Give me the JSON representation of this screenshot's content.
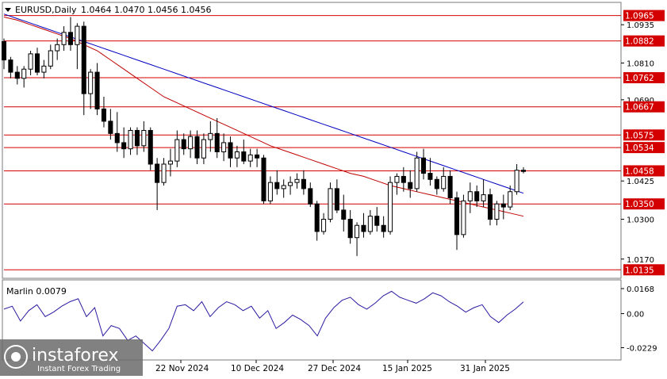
{
  "chart_data": [
    {
      "type": "candlestick",
      "title": "EURUSD,Daily",
      "ohlc_label": "1.0464 1.0470 1.0456 1.0456",
      "ylim": [
        1.0115,
        1.0995
      ],
      "y_ticks": [
        "1.0935",
        "1.0810",
        "1.0690",
        "1.0425",
        "1.0300",
        "1.0170"
      ],
      "levels": [
        {
          "label": "1.0965",
          "value": 1.0965
        },
        {
          "label": "1.0882",
          "value": 1.0882
        },
        {
          "label": "1.0762",
          "value": 1.0762
        },
        {
          "label": "1.0667",
          "value": 1.0667
        },
        {
          "label": "1.0575",
          "value": 1.0575
        },
        {
          "label": "1.0534",
          "value": 1.0534
        },
        {
          "label": "1.0458",
          "value": 1.0458
        },
        {
          "label": "1.0350",
          "value": 1.035
        },
        {
          "label": "1.0135",
          "value": 1.0135
        }
      ],
      "x_labels": [
        "22 Nov 2024",
        "10 Dec 2024",
        "27 Dec 2024",
        "15 Jan 2025",
        "31 Jan 2025"
      ],
      "candles": [
        [
          1.088,
          1.089,
          1.079,
          1.082
        ],
        [
          1.082,
          1.083,
          1.076,
          1.078
        ],
        [
          1.078,
          1.08,
          1.074,
          1.076
        ],
        [
          1.076,
          1.08,
          1.073,
          1.079
        ],
        [
          1.079,
          1.085,
          1.077,
          1.084
        ],
        [
          1.084,
          1.086,
          1.077,
          1.078
        ],
        [
          1.078,
          1.082,
          1.076,
          1.08
        ],
        [
          1.08,
          1.087,
          1.079,
          1.085
        ],
        [
          1.085,
          1.089,
          1.082,
          1.087
        ],
        [
          1.087,
          1.093,
          1.085,
          1.091
        ],
        [
          1.091,
          1.096,
          1.085,
          1.087
        ],
        [
          1.087,
          1.094,
          1.079,
          1.093
        ],
        [
          1.093,
          1.0945,
          1.064,
          1.071
        ],
        [
          1.071,
          1.079,
          1.066,
          1.078
        ],
        [
          1.078,
          1.081,
          1.064,
          1.066
        ],
        [
          1.066,
          1.07,
          1.06,
          1.062
        ],
        [
          1.062,
          1.066,
          1.056,
          1.058
        ],
        [
          1.058,
          1.065,
          1.052,
          1.055
        ],
        [
          1.055,
          1.06,
          1.05,
          1.053
        ],
        [
          1.053,
          1.06,
          1.051,
          1.059
        ],
        [
          1.059,
          1.06,
          1.051,
          1.054
        ],
        [
          1.054,
          1.062,
          1.052,
          1.059
        ],
        [
          1.059,
          1.06,
          1.046,
          1.048
        ],
        [
          1.048,
          1.05,
          1.033,
          1.042
        ],
        [
          1.042,
          1.05,
          1.041,
          1.048
        ],
        [
          1.048,
          1.053,
          1.044,
          1.049
        ],
        [
          1.049,
          1.059,
          1.047,
          1.056
        ],
        [
          1.056,
          1.058,
          1.051,
          1.053
        ],
        [
          1.053,
          1.059,
          1.05,
          1.057
        ],
        [
          1.057,
          1.059,
          1.048,
          1.05
        ],
        [
          1.05,
          1.058,
          1.048,
          1.056
        ],
        [
          1.056,
          1.062,
          1.052,
          1.058
        ],
        [
          1.058,
          1.063,
          1.05,
          1.052
        ],
        [
          1.052,
          1.058,
          1.049,
          1.055
        ],
        [
          1.055,
          1.057,
          1.047,
          1.05
        ],
        [
          1.05,
          1.054,
          1.047,
          1.052
        ],
        [
          1.052,
          1.056,
          1.048,
          1.049
        ],
        [
          1.049,
          1.053,
          1.047,
          1.051
        ],
        [
          1.051,
          1.053,
          1.047,
          1.05
        ],
        [
          1.05,
          1.051,
          1.035,
          1.036
        ],
        [
          1.036,
          1.044,
          1.035,
          1.042
        ],
        [
          1.042,
          1.046,
          1.038,
          1.04
        ],
        [
          1.04,
          1.043,
          1.037,
          1.041
        ],
        [
          1.041,
          1.044,
          1.038,
          1.042
        ],
        [
          1.042,
          1.045,
          1.04,
          1.043
        ],
        [
          1.043,
          1.046,
          1.038,
          1.04
        ],
        [
          1.04,
          1.042,
          1.034,
          1.035
        ],
        [
          1.035,
          1.036,
          1.023,
          1.026
        ],
        [
          1.026,
          1.032,
          1.025,
          1.03
        ],
        [
          1.03,
          1.042,
          1.029,
          1.04
        ],
        [
          1.04,
          1.043,
          1.032,
          1.033
        ],
        [
          1.033,
          1.038,
          1.026,
          1.03
        ],
        [
          1.03,
          1.033,
          1.022,
          1.024
        ],
        [
          1.024,
          1.029,
          1.018,
          1.028
        ],
        [
          1.028,
          1.032,
          1.024,
          1.026
        ],
        [
          1.026,
          1.033,
          1.025,
          1.031
        ],
        [
          1.031,
          1.034,
          1.026,
          1.028
        ],
        [
          1.028,
          1.031,
          1.024,
          1.026
        ],
        [
          1.026,
          1.044,
          1.025,
          1.042
        ],
        [
          1.042,
          1.045,
          1.038,
          1.044
        ],
        [
          1.044,
          1.047,
          1.039,
          1.042
        ],
        [
          1.042,
          1.046,
          1.037,
          1.04
        ],
        [
          1.04,
          1.052,
          1.039,
          1.05
        ],
        [
          1.05,
          1.053,
          1.043,
          1.045
        ],
        [
          1.045,
          1.05,
          1.041,
          1.043
        ],
        [
          1.043,
          1.044,
          1.038,
          1.04
        ],
        [
          1.04,
          1.047,
          1.039,
          1.044
        ],
        [
          1.044,
          1.046,
          1.035,
          1.037
        ],
        [
          1.037,
          1.039,
          1.02,
          1.025
        ],
        [
          1.025,
          1.038,
          1.024,
          1.036
        ],
        [
          1.036,
          1.042,
          1.032,
          1.039
        ],
        [
          1.039,
          1.041,
          1.034,
          1.036
        ],
        [
          1.036,
          1.043,
          1.034,
          1.038
        ],
        [
          1.038,
          1.04,
          1.028,
          1.03
        ],
        [
          1.03,
          1.036,
          1.028,
          1.035
        ],
        [
          1.035,
          1.038,
          1.03,
          1.034
        ],
        [
          1.034,
          1.041,
          1.033,
          1.039
        ],
        [
          1.039,
          1.048,
          1.038,
          1.046
        ],
        [
          1.046,
          1.047,
          1.045,
          1.0456
        ]
      ],
      "moving_averages": [
        {
          "color": "#c00000",
          "values": [
            1.096,
            1.095,
            1.0935,
            1.092,
            1.0905,
            1.089,
            1.087,
            1.085,
            1.082,
            1.079,
            1.076,
            1.073,
            1.07,
            1.068,
            1.066,
            1.064,
            1.062,
            1.06,
            1.058,
            1.056,
            1.054,
            1.0525,
            1.051,
            1.0495,
            1.048,
            1.0465,
            1.045,
            1.044,
            1.0425,
            1.041,
            1.04,
            1.039,
            1.038,
            1.037,
            1.036,
            1.035,
            1.034,
            1.033,
            1.032,
            1.031
          ]
        },
        {
          "color": "#0000c0",
          "values": [
            1.097,
            1.0955,
            1.094,
            1.0925,
            1.091,
            1.0895,
            1.088,
            1.0865,
            1.085,
            1.0835,
            1.082,
            1.0805,
            1.079,
            1.0775,
            1.076,
            1.0745,
            1.073,
            1.0715,
            1.07,
            1.0685,
            1.067,
            1.0655,
            1.064,
            1.0625,
            1.061,
            1.0595,
            1.058,
            1.0565,
            1.055,
            1.0535,
            1.052,
            1.0505,
            1.049,
            1.0475,
            1.046,
            1.0445,
            1.043,
            1.0415,
            1.04,
            1.0385
          ]
        }
      ]
    },
    {
      "type": "line",
      "title": "Marlin 0.0079",
      "ylim": [
        -0.029,
        0.02
      ],
      "y_ticks": [
        "0.0168",
        "0.00",
        "-0.0229"
      ],
      "series": [
        {
          "color": "#2a1aa0",
          "values": [
            0.003,
            0.005,
            -0.005,
            0.002,
            0.006,
            -0.002,
            0.001,
            0.005,
            0.008,
            0.01,
            -0.002,
            0.004,
            -0.015,
            -0.008,
            -0.01,
            -0.018,
            -0.015,
            -0.02,
            -0.025,
            -0.018,
            -0.01,
            0.005,
            0.006,
            0.002,
            0.008,
            -0.002,
            0.004,
            0.008,
            0.006,
            0.002,
            0.005,
            -0.003,
            0.002,
            -0.01,
            -0.006,
            -0.001,
            -0.004,
            -0.008,
            -0.015,
            -0.003,
            0.004,
            0.009,
            0.011,
            0.006,
            0.003,
            0.007,
            0.012,
            0.015,
            0.011,
            0.009,
            0.007,
            0.01,
            0.014,
            0.012,
            0.008,
            0.005,
            0.001,
            0.004,
            0.006,
            -0.002,
            -0.006,
            -0.001,
            0.003,
            0.0079
          ]
        }
      ]
    }
  ],
  "logo": {
    "brand": "instaforex",
    "tagline": "Instant Forex Trading"
  },
  "colors": {
    "bull": "#ffffff",
    "bear": "#000000",
    "level": "#d40000",
    "level_label_bg": "#d40000"
  }
}
